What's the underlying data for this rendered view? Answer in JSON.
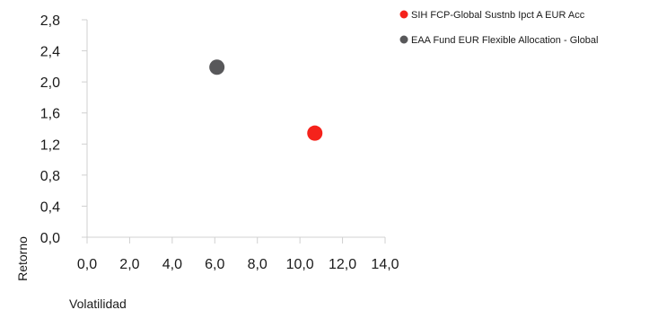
{
  "chart_data": {
    "type": "scatter",
    "xlabel": "Volatilidad",
    "ylabel": "Retorno",
    "xlim": [
      0,
      14
    ],
    "ylim": [
      0,
      2.8
    ],
    "x_ticks": [
      "0,0",
      "2,0",
      "4,0",
      "6,0",
      "8,0",
      "10,0",
      "12,0",
      "14,0"
    ],
    "y_ticks": [
      "0,0",
      "0,4",
      "0,8",
      "1,2",
      "1,6",
      "2,0",
      "2,4",
      "2,8"
    ],
    "grid": false,
    "legend_position": "top-right",
    "series": [
      {
        "name": "SIH FCP-Global Sustnb Ipct A EUR Acc",
        "color": "#f5221b",
        "x": [
          10.7
        ],
        "y": [
          1.34
        ]
      },
      {
        "name": "EAA Fund EUR Flexible Allocation - Global",
        "color": "#58585a",
        "x": [
          6.1
        ],
        "y": [
          2.19
        ]
      }
    ]
  }
}
